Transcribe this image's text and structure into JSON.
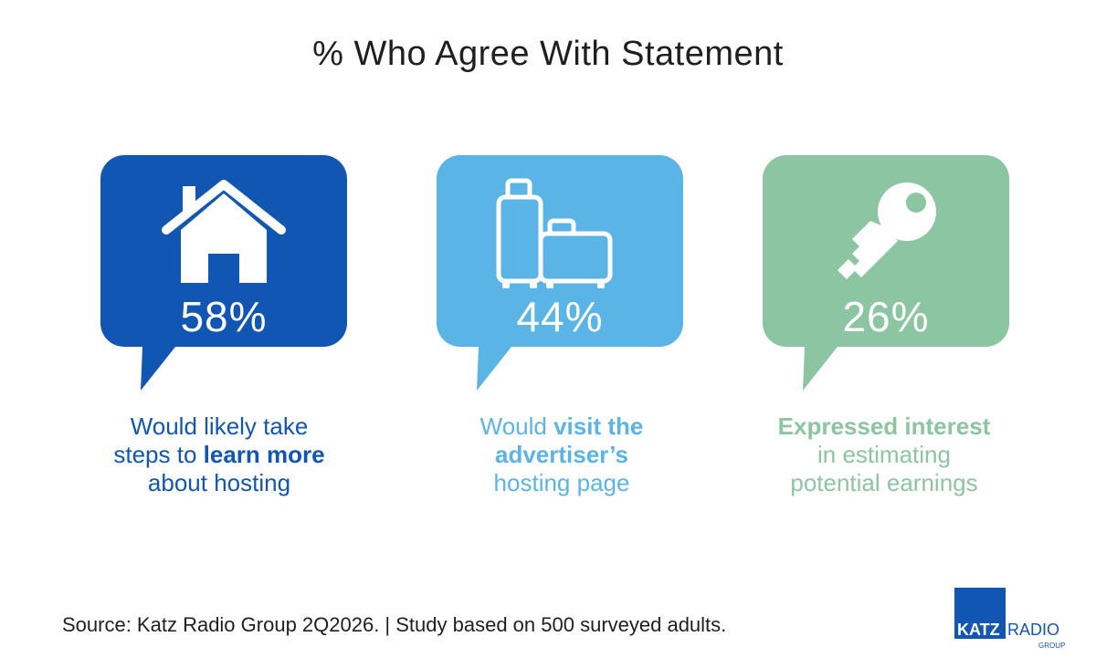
{
  "chart_data": {
    "type": "infographic",
    "title": "% Who Agree With Statement",
    "categories": [
      "Would likely take steps to learn more about hosting",
      "Would visit the advertiser’s hosting page",
      "Expressed interest in estimating potential earnings"
    ],
    "values": [
      58,
      44,
      26
    ],
    "unit": "%"
  },
  "cards": [
    {
      "percent_label": "58%",
      "icon": "house-icon",
      "color": "#1256b4",
      "caption": [
        {
          "text": "Would likely take",
          "bold": false,
          "br": true
        },
        {
          "text": "steps to ",
          "bold": false,
          "br": false
        },
        {
          "text": "learn more",
          "bold": true,
          "br": true
        },
        {
          "text": "about hosting",
          "bold": false,
          "br": false
        }
      ]
    },
    {
      "percent_label": "44%",
      "icon": "luggage-icon",
      "color": "#5bb4e6",
      "caption": [
        {
          "text": "Would ",
          "bold": false,
          "br": false
        },
        {
          "text": "visit the",
          "bold": true,
          "br": true
        },
        {
          "text": "advertiser’s",
          "bold": true,
          "br": true
        },
        {
          "text": "hosting page",
          "bold": false,
          "br": false
        }
      ]
    },
    {
      "percent_label": "26%",
      "icon": "key-icon",
      "color": "#8cc5a2",
      "caption": [
        {
          "text": "Expressed interest",
          "bold": true,
          "br": true
        },
        {
          "text": "in estimating",
          "bold": false,
          "br": true
        },
        {
          "text": "potential earnings",
          "bold": false,
          "br": false
        }
      ]
    }
  ],
  "source": "Source: Katz Radio Group 2Q2026. | Study based on 500 surveyed adults.",
  "logo": {
    "word1": "KATZ",
    "word2": "RADIO",
    "word3": "GROUP",
    "color": "#1256b4"
  }
}
